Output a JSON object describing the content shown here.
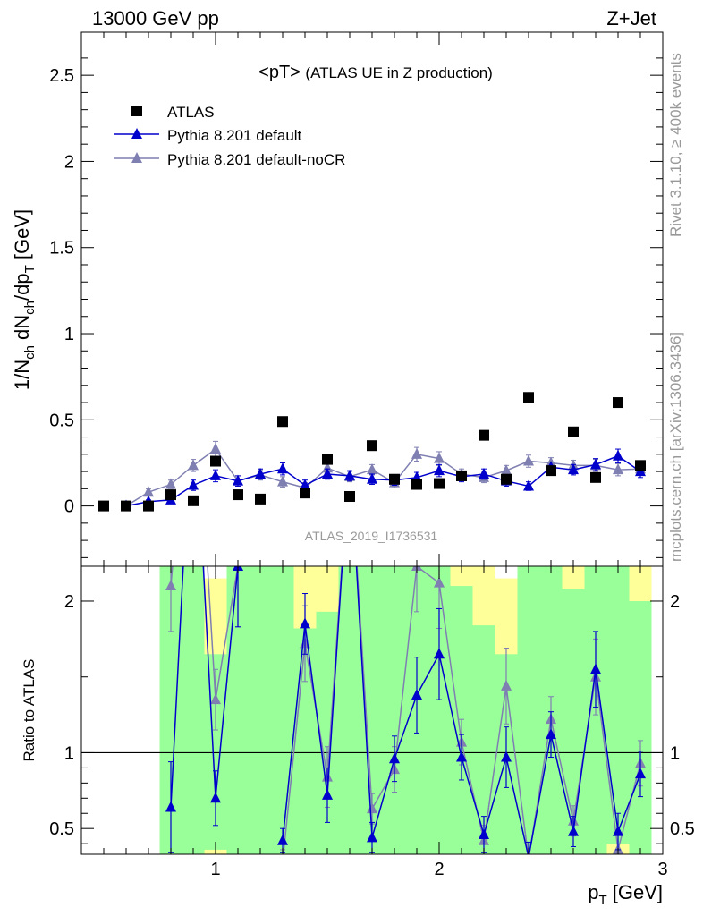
{
  "header": {
    "left": "13000 GeV pp",
    "right": "Z+Jet"
  },
  "side_labels": {
    "rivet": "Rivet 3.1.10, ≥ 400k events",
    "mcplots": "mcplots.cern.ch [arXiv:1306.3436]"
  },
  "chart_data": [
    {
      "type": "scatter",
      "panel": "main",
      "title": "<pT>",
      "title_suffix": "(ATLAS UE in Z production)",
      "analysis_id": "ATLAS_2019_I1736531",
      "ylabel": "1/N_ch dN_ch/dp_T [GeV]",
      "ylabel_parts": {
        "a": "1/N",
        "a_sub": "ch",
        "b": " dN",
        "b_sub": "ch",
        "c": "/dp",
        "c_sub": "T",
        "d": " [GeV]"
      },
      "xlim": [
        0.4,
        3.0
      ],
      "ylim": [
        -0.35,
        2.75
      ],
      "yticks": [
        0,
        0.5,
        1,
        1.5,
        2,
        2.5
      ],
      "ytick_labels": [
        "0",
        "0.5",
        "1",
        "1.5",
        "2",
        "2.5"
      ],
      "legend_position": "top-left",
      "x": [
        0.5,
        0.6,
        0.7,
        0.8,
        0.9,
        1.0,
        1.1,
        1.2,
        1.3,
        1.4,
        1.5,
        1.6,
        1.7,
        1.8,
        1.9,
        2.0,
        2.1,
        2.2,
        2.3,
        2.4,
        2.5,
        2.6,
        2.7,
        2.8,
        2.9
      ],
      "series": [
        {
          "name": "ATLAS",
          "marker": "square",
          "color": "#000000",
          "values": [
            0.0,
            0.0,
            0.0,
            0.065,
            0.03,
            0.26,
            0.065,
            0.04,
            0.49,
            0.075,
            0.27,
            0.055,
            0.35,
            0.155,
            0.125,
            0.13,
            0.175,
            0.41,
            0.155,
            0.63,
            0.205,
            0.43,
            0.165,
            0.6,
            0.235
          ]
        },
        {
          "name": "Pythia 8.201 default",
          "marker": "triangle",
          "color": "#0000cc",
          "values": [
            null,
            0.0,
            0.025,
            0.035,
            0.12,
            0.175,
            0.145,
            0.185,
            0.215,
            0.12,
            0.185,
            0.175,
            0.155,
            0.15,
            0.165,
            0.205,
            0.17,
            0.185,
            0.145,
            0.115,
            0.225,
            0.21,
            0.24,
            0.29,
            0.2
          ],
          "errors": [
            null,
            0.0,
            0.01,
            0.012,
            0.03,
            0.035,
            0.03,
            0.03,
            0.035,
            0.03,
            0.03,
            0.03,
            0.03,
            0.03,
            0.03,
            0.035,
            0.03,
            0.03,
            0.03,
            0.025,
            0.03,
            0.03,
            0.035,
            0.04,
            0.035
          ]
        },
        {
          "name": "Pythia 8.201 default-noCR",
          "marker": "triangle",
          "color": "#7f7fb2",
          "values": [
            null,
            0.0,
            0.08,
            0.125,
            0.235,
            0.33,
            0.145,
            0.18,
            0.14,
            0.105,
            0.22,
            0.17,
            0.21,
            0.135,
            0.3,
            0.275,
            0.185,
            0.165,
            0.205,
            0.26,
            0.25,
            0.235,
            0.235,
            0.21,
            0.215
          ],
          "errors": [
            null,
            0.0,
            0.02,
            0.025,
            0.035,
            0.045,
            0.03,
            0.03,
            0.03,
            0.03,
            0.03,
            0.03,
            0.03,
            0.03,
            0.04,
            0.04,
            0.03,
            0.03,
            0.03,
            0.035,
            0.03,
            0.03,
            0.035,
            0.035,
            0.035
          ]
        }
      ]
    },
    {
      "type": "line",
      "panel": "ratio",
      "ylabel": "Ratio to ATLAS",
      "xlabel": "p_T [GeV]",
      "xlabel_parts": {
        "a": "p",
        "a_sub": "T",
        "b": " [GeV]"
      },
      "xlim": [
        0.4,
        3.0
      ],
      "ylim": [
        0.33,
        2.23
      ],
      "xticks": [
        1,
        2,
        3
      ],
      "xtick_labels": [
        "1",
        "2",
        "3"
      ],
      "yticks": [
        0.5,
        1,
        2
      ],
      "ytick_labels": [
        "0.5",
        "1",
        "2"
      ],
      "reference_line": 1,
      "band": {
        "colors": {
          "inner": "#99ff99",
          "outer": "#ffff99"
        },
        "x_edges": [
          0.75,
          0.85,
          0.95,
          1.05,
          1.15,
          1.25,
          1.35,
          1.45,
          1.55,
          1.65,
          1.75,
          1.85,
          1.95,
          2.05,
          2.15,
          2.25,
          2.35,
          2.45,
          2.55,
          2.65,
          2.75,
          2.85,
          2.95
        ],
        "inner_low": [
          0.33,
          0.33,
          0.36,
          0.33,
          0.33,
          0.33,
          0.33,
          0.33,
          0.33,
          0.33,
          0.33,
          0.33,
          0.33,
          0.33,
          0.33,
          0.33,
          0.33,
          0.33,
          0.33,
          0.33,
          0.4,
          0.33
        ],
        "inner_high": [
          2.23,
          2.23,
          1.65,
          2.23,
          2.23,
          2.23,
          1.82,
          1.93,
          2.23,
          2.23,
          2.23,
          2.23,
          2.23,
          2.1,
          1.84,
          1.65,
          2.23,
          2.23,
          2.08,
          2.23,
          2.23,
          2.0
        ],
        "outer_low": [
          0.33,
          0.33,
          0.33,
          0.33,
          0.33,
          0.33,
          0.33,
          0.33,
          0.33,
          0.33,
          0.33,
          0.33,
          0.33,
          0.33,
          0.33,
          0.33,
          0.33,
          0.33,
          0.33,
          0.33,
          0.33,
          0.33
        ],
        "outer_high": [
          2.23,
          2.23,
          2.23,
          2.23,
          2.23,
          2.23,
          2.23,
          2.23,
          2.23,
          2.23,
          2.23,
          2.23,
          2.23,
          2.23,
          2.23,
          2.23,
          2.23,
          2.23,
          2.23,
          2.23,
          2.23,
          2.23
        ],
        "outer_top_gap": [
          0,
          0,
          0.08,
          0,
          0,
          0,
          0,
          0,
          0,
          0,
          0,
          0,
          0,
          0,
          0,
          0.08,
          0,
          0,
          0,
          0,
          0.1,
          0
        ]
      },
      "series": [
        {
          "name": "Pythia 8.201 default",
          "color": "#0000cc",
          "x": [
            0.8,
            0.9,
            1.0,
            1.1,
            1.2,
            1.3,
            1.4,
            1.5,
            1.6,
            1.7,
            1.8,
            1.9,
            2.0,
            2.1,
            2.2,
            2.3,
            2.4,
            2.5,
            2.6,
            2.7,
            2.8,
            2.9
          ],
          "values": [
            0.64,
            3.5,
            0.7,
            2.23,
            null,
            0.42,
            1.85,
            0.72,
            3.0,
            0.44,
            0.96,
            1.38,
            1.65,
            0.97,
            0.46,
            0.97,
            0.31,
            1.12,
            0.48,
            1.55,
            0.48,
            0.86
          ],
          "errors": [
            0.3,
            0.4,
            0.18,
            0.4,
            null,
            0.08,
            0.2,
            0.18,
            0.4,
            0.1,
            0.15,
            0.25,
            0.3,
            0.15,
            0.12,
            0.2,
            0.1,
            0.15,
            0.1,
            0.25,
            0.12,
            0.15
          ]
        },
        {
          "name": "Pythia 8.201 default-noCR",
          "color": "#7f7fb2",
          "x": [
            0.8,
            0.9,
            1.0,
            1.1,
            1.2,
            1.3,
            1.4,
            1.5,
            1.6,
            1.7,
            1.8,
            1.9,
            2.0,
            2.1,
            2.2,
            2.3,
            2.4,
            2.5,
            2.6,
            2.7,
            2.8,
            2.9
          ],
          "values": [
            2.1,
            3.8,
            1.35,
            2.23,
            null,
            0.28,
            1.72,
            0.84,
            3.0,
            0.63,
            0.89,
            2.23,
            2.12,
            1.07,
            0.42,
            1.44,
            0.3,
            1.22,
            0.55,
            1.5,
            0.36,
            0.93
          ],
          "errors": [
            0.3,
            0.4,
            0.2,
            0.4,
            null,
            0.08,
            0.25,
            0.2,
            0.4,
            0.1,
            0.15,
            0.3,
            0.3,
            0.15,
            0.1,
            0.25,
            0.1,
            0.15,
            0.1,
            0.25,
            0.1,
            0.15
          ]
        }
      ]
    }
  ]
}
